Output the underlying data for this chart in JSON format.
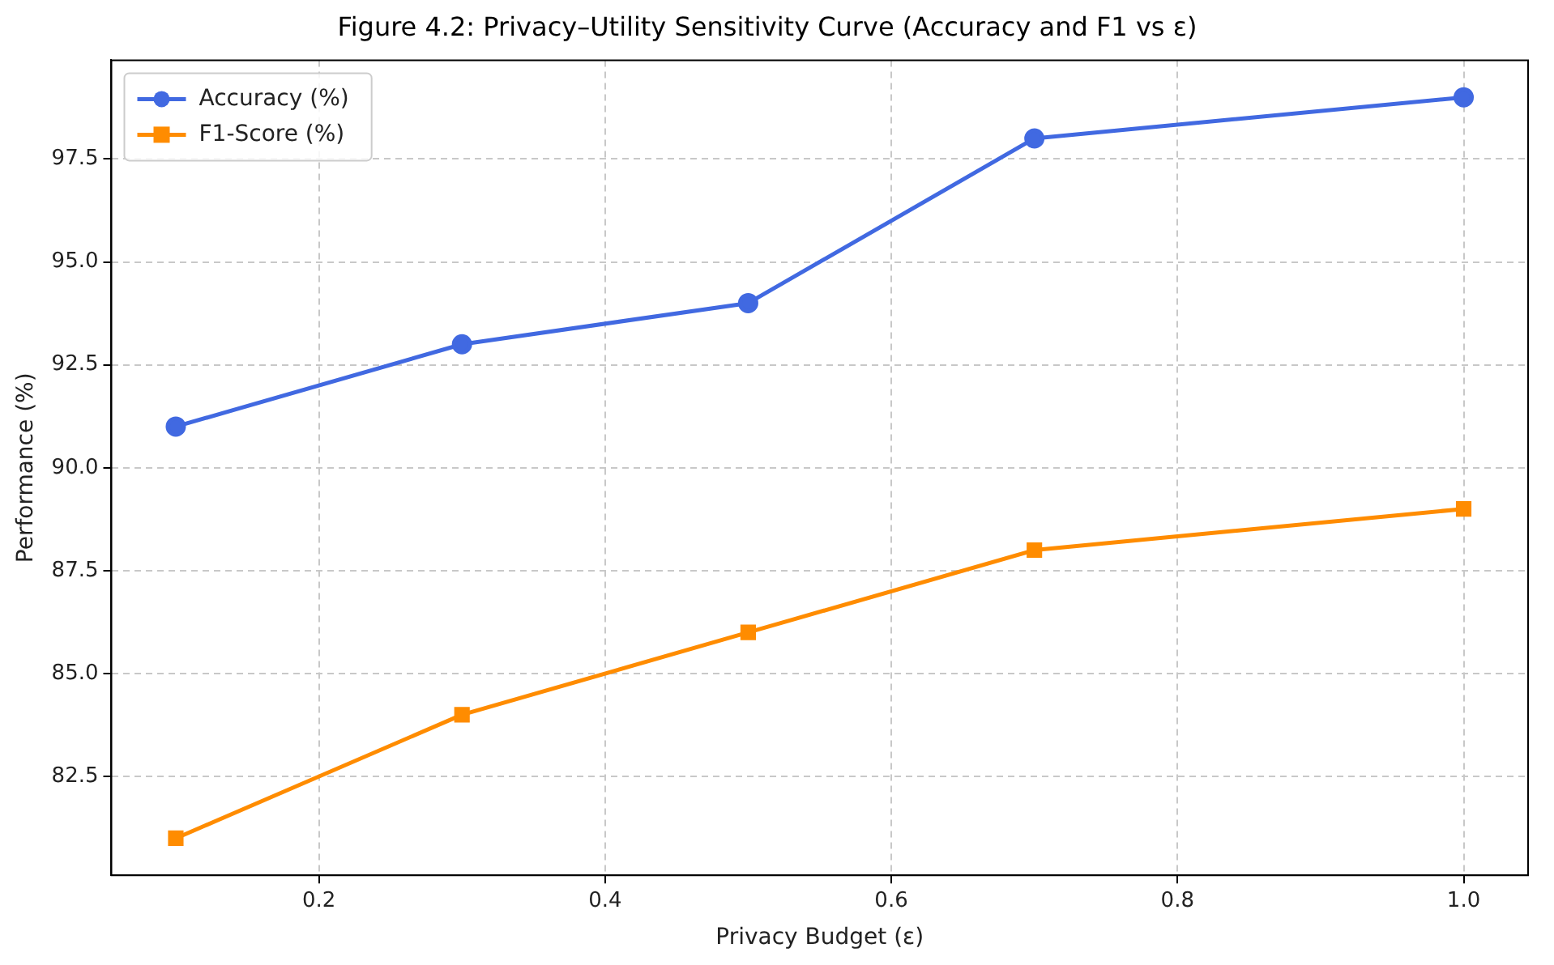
{
  "chart_data": {
    "type": "line",
    "title": "Figure 4.2: Privacy–Utility Sensitivity Curve (Accuracy and F1 vs ε)",
    "xlabel": "Privacy Budget (ε)",
    "ylabel": "Performance (%)",
    "x": [
      0.1,
      0.3,
      0.5,
      0.7,
      1.0
    ],
    "series": [
      {
        "name": "Accuracy (%)",
        "color": "#4169e1",
        "marker": "circle",
        "values": [
          91,
          93,
          94,
          98,
          99
        ]
      },
      {
        "name": "F1-Score (%)",
        "color": "#ff8c00",
        "marker": "square",
        "values": [
          81,
          84,
          86,
          88,
          89
        ]
      }
    ],
    "xlim": [
      0.055,
      1.045
    ],
    "xticks": [
      {
        "value": 0.2,
        "label": "0.2"
      },
      {
        "value": 0.4,
        "label": "0.4"
      },
      {
        "value": 0.6,
        "label": "0.6"
      },
      {
        "value": 0.8,
        "label": "0.8"
      },
      {
        "value": 1.0,
        "label": "1.0"
      }
    ],
    "ylim": [
      80.1,
      99.9
    ],
    "yticks": [
      {
        "value": 82.5,
        "label": "82.5"
      },
      {
        "value": 85,
        "label": "85.0"
      },
      {
        "value": 87.5,
        "label": "87.5"
      },
      {
        "value": 90,
        "label": "90.0"
      },
      {
        "value": 92.5,
        "label": "92.5"
      },
      {
        "value": 95,
        "label": "95.0"
      },
      {
        "value": 97.5,
        "label": "97.5"
      }
    ],
    "grid": true,
    "legend": "top left",
    "line_style": "solid"
  }
}
